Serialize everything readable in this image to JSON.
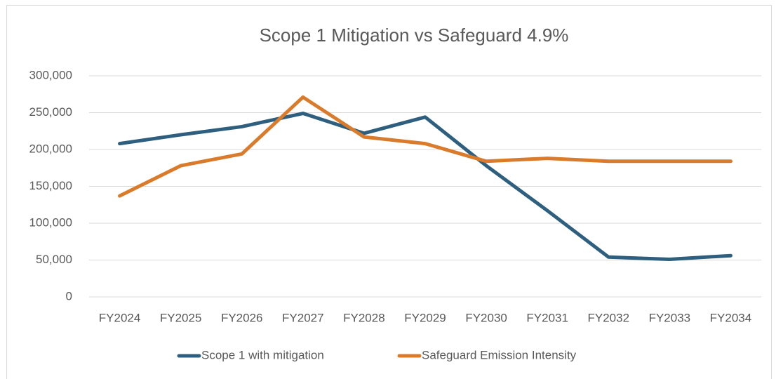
{
  "chart_data": {
    "type": "line",
    "title": "Scope 1 Mitigation vs Safeguard 4.9%",
    "categories": [
      "FY2024",
      "FY2025",
      "FY2026",
      "FY2027",
      "FY2028",
      "FY2029",
      "FY2030",
      "FY2031",
      "FY2032",
      "FY2033",
      "FY2034"
    ],
    "series": [
      {
        "name": "Scope 1 with mitigation",
        "color": "#2e5f7f",
        "values": [
          208000,
          220000,
          231000,
          249000,
          222000,
          244000,
          178000,
          117000,
          54000,
          51000,
          56000
        ]
      },
      {
        "name": "Safeguard Emission Intensity",
        "color": "#d97b2b",
        "values": [
          137000,
          178000,
          194000,
          271000,
          217000,
          208000,
          184000,
          188000,
          184000,
          184000,
          184000
        ]
      }
    ],
    "ylim": [
      0,
      300000
    ],
    "yticks": [
      0,
      {
        "value": 50000,
        "label": "50,000"
      },
      {
        "value": 100000,
        "label": "100,000"
      },
      {
        "value": 150000,
        "label": "150,000"
      },
      {
        "value": 200000,
        "label": "200,000"
      },
      {
        "value": 250000,
        "label": "250,000"
      },
      {
        "value": 300000,
        "label": "300,000"
      }
    ],
    "grid": true,
    "legend": "bottom"
  }
}
